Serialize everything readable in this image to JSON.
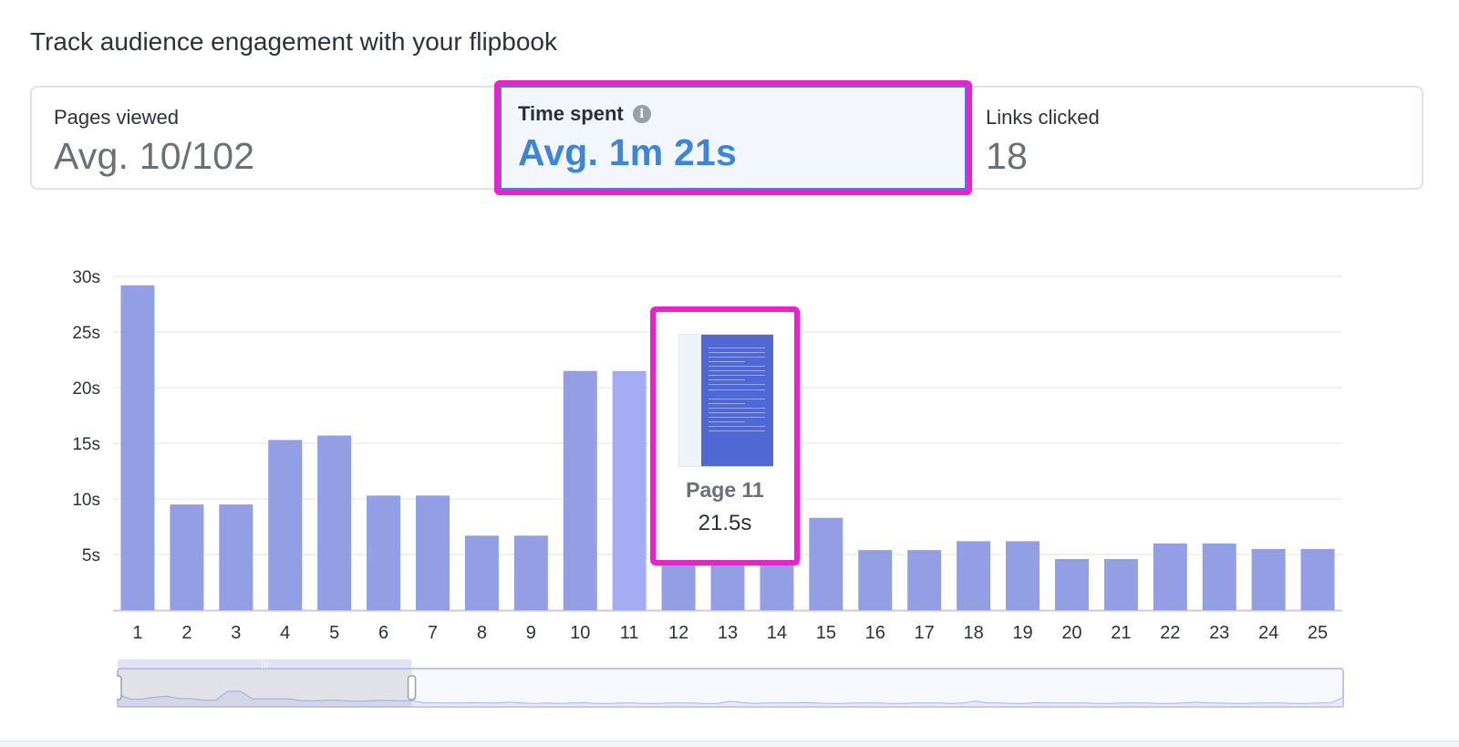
{
  "heading": "Track audience engagement with your flipbook",
  "stats": [
    {
      "label": "Pages viewed",
      "value": "Avg. 10/102"
    },
    {
      "label": "Time spent",
      "value": "Avg. 1m 21s",
      "icon": "info-icon"
    },
    {
      "label": "Links clicked",
      "value": "18"
    }
  ],
  "colors": {
    "bar": "#939fe4",
    "bar_hover": "#a4acf4",
    "accent": "#3b86d8",
    "highlight": "#ef1ecf"
  },
  "chart_data": {
    "type": "bar",
    "categories": [
      "1",
      "2",
      "3",
      "4",
      "5",
      "6",
      "7",
      "8",
      "9",
      "10",
      "11",
      "12",
      "13",
      "14",
      "15",
      "16",
      "17",
      "18",
      "19",
      "20",
      "21",
      "22",
      "23",
      "24",
      "25"
    ],
    "values": [
      29.2,
      9.5,
      9.5,
      15.3,
      15.7,
      10.3,
      10.3,
      6.7,
      6.7,
      21.5,
      21.5,
      8.5,
      8.5,
      8.5,
      8.3,
      5.4,
      5.4,
      6.2,
      6.2,
      4.6,
      4.6,
      6.0,
      6.0,
      5.5,
      5.5
    ],
    "yticks": [
      "5s",
      "10s",
      "15s",
      "20s",
      "25s",
      "30s"
    ],
    "ylim": [
      0,
      30
    ],
    "grid": true,
    "highlighted_index": 10
  },
  "tooltip": {
    "page_label": "Page 11",
    "value_label": "21.5s"
  },
  "overview": {
    "profile": [
      0.55,
      0.3,
      0.3,
      0.4,
      0.45,
      0.33,
      0.33,
      0.25,
      0.25,
      0.7,
      0.7,
      0.32,
      0.32,
      0.32,
      0.31,
      0.22,
      0.22,
      0.24,
      0.24,
      0.2,
      0.2,
      0.23,
      0.23,
      0.22,
      0.22,
      0.12,
      0.1,
      0.1,
      0.1,
      0.12,
      0.1,
      0.1,
      0.15,
      0.1,
      0.08,
      0.1,
      0.08,
      0.1,
      0.12,
      0.08,
      0.08,
      0.1,
      0.1,
      0.08,
      0.08,
      0.1,
      0.1,
      0.1,
      0.08,
      0.08,
      0.2,
      0.12,
      0.08,
      0.1,
      0.1,
      0.1,
      0.12,
      0.1,
      0.08,
      0.08,
      0.1,
      0.1,
      0.1,
      0.08,
      0.08,
      0.1,
      0.1,
      0.1,
      0.08,
      0.1,
      0.2,
      0.1,
      0.1,
      0.08,
      0.08,
      0.12,
      0.1,
      0.1,
      0.1,
      0.1,
      0.08,
      0.08,
      0.1,
      0.1,
      0.1,
      0.08,
      0.08,
      0.1,
      0.15,
      0.1,
      0.1,
      0.08,
      0.08,
      0.1,
      0.1,
      0.1,
      0.08,
      0.08,
      0.1,
      0.1,
      0.4
    ],
    "selected_range": [
      0,
      0.24
    ]
  }
}
